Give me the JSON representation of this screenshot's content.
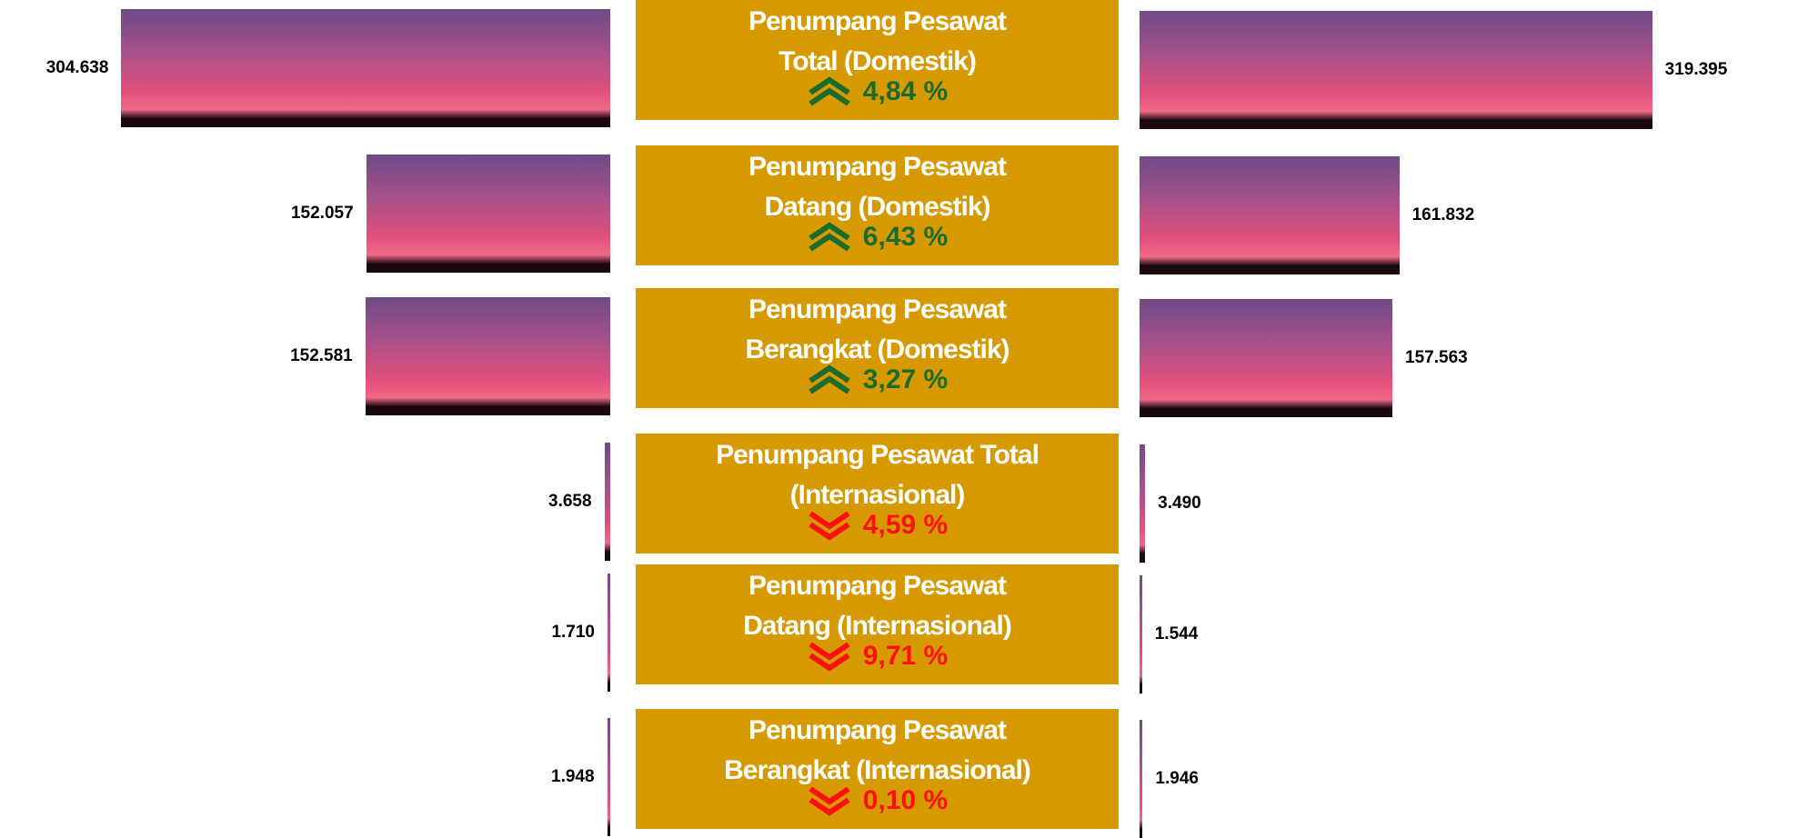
{
  "chart_data": {
    "type": "butterfly",
    "categories": [
      "Penumpang Pesawat\nTotal (Domestik)",
      "Penumpang Pesawat\nDatang (Domestik)",
      "Penumpang Pesawat\nBerangkat (Domestik)",
      "Penumpang Pesawat Total\n(Internasional)",
      "Penumpang Pesawat\nDatang (Internasional)",
      "Penumpang Pesawat\nBerangkat (Internasional)"
    ],
    "series": [
      {
        "values": [
          304638,
          152057,
          152581,
          3658,
          1710,
          1948
        ],
        "value_labels": [
          "304.638",
          "152.057",
          "152.581",
          "3.658",
          "1.710",
          "1.948"
        ]
      },
      {
        "values": [
          319395,
          161832,
          157563,
          3490,
          1544,
          1946
        ],
        "value_labels": [
          "319.395",
          "161.832",
          "157.563",
          "3.490",
          "1.544",
          "1.946"
        ]
      }
    ],
    "changes": {
      "values": [
        4.84,
        6.43,
        3.27,
        4.59,
        9.71,
        0.1
      ],
      "value_labels": [
        "4,84 %",
        "6,43 %",
        "3,27 %",
        "4,59 %",
        "9,71 %",
        "0,10 %"
      ],
      "directions": [
        "up",
        "up",
        "up",
        "down",
        "down",
        "down"
      ],
      "up_color": "#1c6b2c",
      "down_color": "#ff1010"
    },
    "box_color": "#d69a00",
    "xlim": [
      0,
      340000
    ]
  }
}
